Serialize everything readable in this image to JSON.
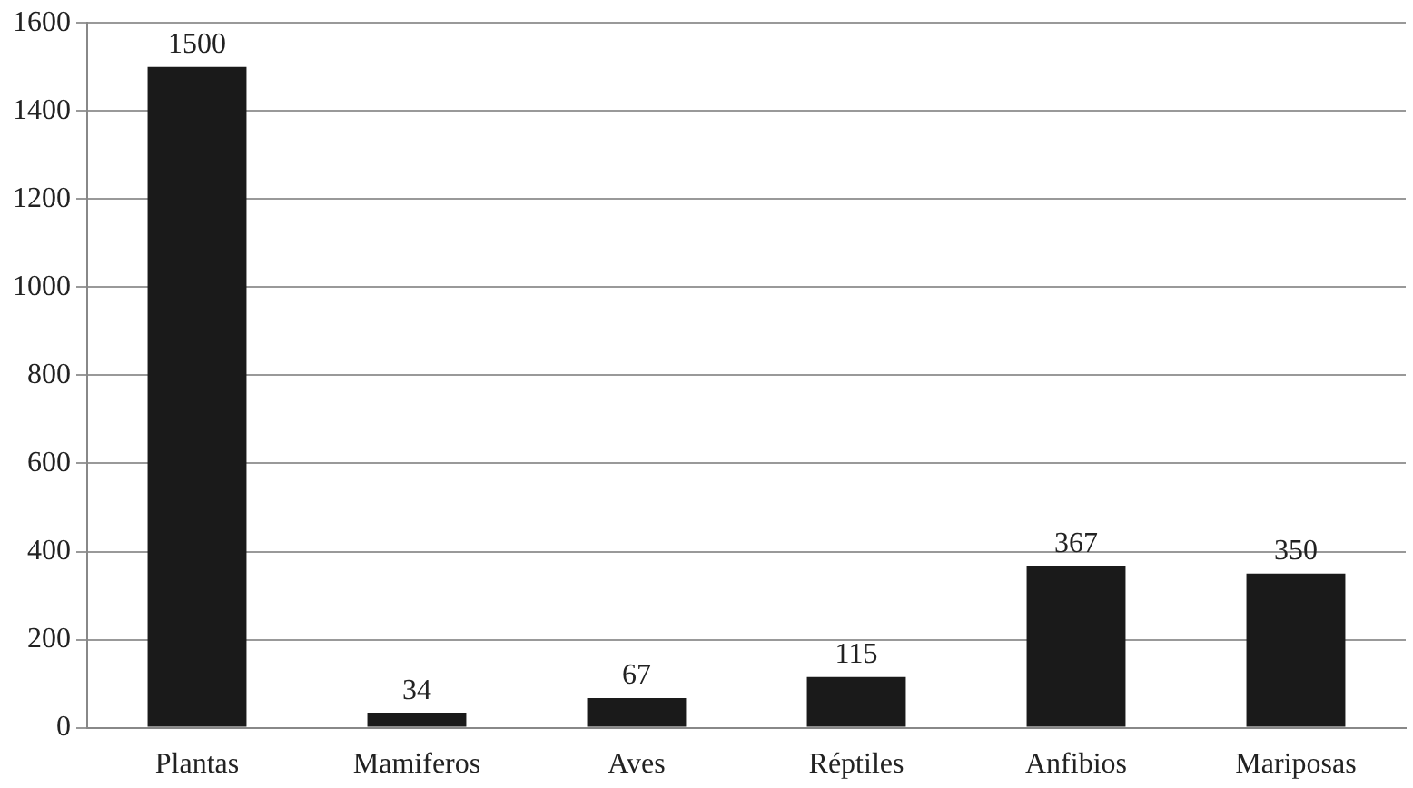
{
  "chart_data": {
    "type": "bar",
    "categories": [
      "Plantas",
      "Mamiferos",
      "Aves",
      "Réptiles",
      "Anfibios",
      "Mariposas"
    ],
    "values": [
      1500,
      34,
      67,
      115,
      367,
      350
    ],
    "color": "#1a1a1a",
    "ylim": [
      0,
      1600
    ],
    "yticks": [
      0,
      200,
      400,
      600,
      800,
      1000,
      1200,
      1400,
      1600
    ],
    "grid": "y",
    "data_labels": true
  }
}
